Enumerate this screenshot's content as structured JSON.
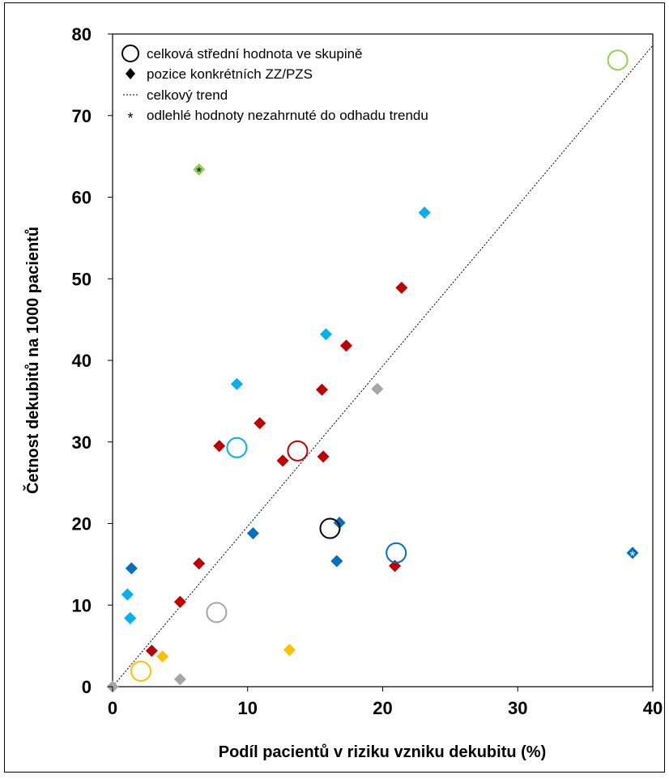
{
  "chart_data": {
    "type": "scatter",
    "title": "",
    "xlabel": "Podíl pacientů v riziku vzniku dekubitu (%)",
    "ylabel": "Četnost dekubitů na 1000 pacientů",
    "xlim": [
      0,
      40
    ],
    "ylim": [
      0,
      80
    ],
    "x_ticks": [
      0,
      10,
      20,
      30,
      40
    ],
    "y_ticks": [
      0,
      10,
      20,
      30,
      40,
      50,
      60,
      70,
      80
    ],
    "x_tick_labels": [
      "0",
      "10",
      "20",
      "30",
      "40"
    ],
    "y_tick_labels": [
      "0",
      "10",
      "20",
      "30",
      "40",
      "50",
      "60",
      "70",
      "80"
    ],
    "grid": false,
    "legend_position": "top-left",
    "legend": [
      {
        "symbol": "circle",
        "label": "celková střední hodnota ve skupině"
      },
      {
        "symbol": "diamond",
        "label": "pozice konkrétních ZZ/PZS"
      },
      {
        "symbol": "dotted-line",
        "label": "celkový trend"
      },
      {
        "symbol": "asterisk",
        "label": "odlehlé hodnoty nezahrnuté do odhadu trendu"
      }
    ],
    "trend_line": {
      "x": [
        0,
        40
      ],
      "y": [
        0,
        78.6
      ]
    },
    "groups": [
      {
        "color": "#c00000",
        "mean": {
          "x": 13.7,
          "y": 28.9
        },
        "points": [
          {
            "x": 2.9,
            "y": 4.4
          },
          {
            "x": 5.0,
            "y": 10.4
          },
          {
            "x": 6.4,
            "y": 15.1
          },
          {
            "x": 7.9,
            "y": 29.5
          },
          {
            "x": 10.9,
            "y": 32.3
          },
          {
            "x": 12.6,
            "y": 27.7
          },
          {
            "x": 15.5,
            "y": 36.4
          },
          {
            "x": 15.6,
            "y": 28.2
          },
          {
            "x": 17.3,
            "y": 41.8
          },
          {
            "x": 21.4,
            "y": 48.9
          },
          {
            "x": 20.9,
            "y": 14.8
          }
        ]
      },
      {
        "color": "#00b0f0",
        "mean": {
          "x": 9.2,
          "y": 29.3
        },
        "points": [
          {
            "x": 1.3,
            "y": 8.4
          },
          {
            "x": 1.1,
            "y": 11.3
          },
          {
            "x": 9.2,
            "y": 37.1
          },
          {
            "x": 15.8,
            "y": 43.2
          },
          {
            "x": 23.1,
            "y": 58.1
          }
        ]
      },
      {
        "color": "#0070c0",
        "mean": {
          "x": 21.0,
          "y": 16.4
        },
        "points": [
          {
            "x": 1.4,
            "y": 14.5
          },
          {
            "x": 10.4,
            "y": 18.8
          },
          {
            "x": 16.6,
            "y": 15.4
          },
          {
            "x": 16.8,
            "y": 20.1
          },
          {
            "x": 38.5,
            "y": 16.4,
            "outlier": true
          }
        ]
      },
      {
        "color": "#a6a6a6",
        "mean": {
          "x": 7.7,
          "y": 9.1
        },
        "points": [
          {
            "x": 0,
            "y": 0
          },
          {
            "x": 5.0,
            "y": 0.9
          },
          {
            "x": 19.6,
            "y": 36.5
          }
        ]
      },
      {
        "color": "#ffc000",
        "mean": {
          "x": 2.1,
          "y": 1.9
        },
        "points": [
          {
            "x": 3.7,
            "y": 3.7
          },
          {
            "x": 13.1,
            "y": 4.5
          }
        ]
      },
      {
        "color": "#92d050",
        "mean": {
          "x": 37.4,
          "y": 76.8
        },
        "points": [
          {
            "x": 6.4,
            "y": 63.4,
            "outlier": true
          }
        ]
      },
      {
        "color": "#000000",
        "mean": {
          "x": 16.1,
          "y": 19.4
        },
        "points": []
      }
    ]
  }
}
